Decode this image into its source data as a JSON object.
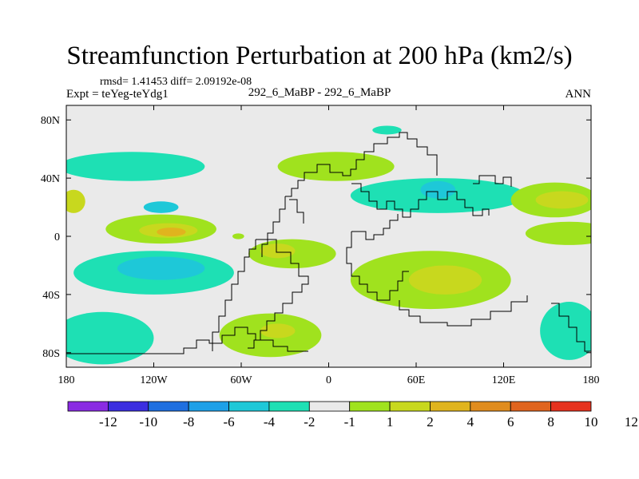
{
  "chart_data": {
    "type": "heatmap",
    "title": "Streamfunction Perturbation at 200 hPa (km2/s)",
    "stats_text": "rmsd= 1.41453 diff= 2.09192e-08",
    "experiment_text": "Expt = teYeg-teYdg1",
    "case_text": "292_6_MaBP - 292_6_MaBP",
    "season_text": "ANN",
    "x_range": [
      -180,
      180
    ],
    "y_range": [
      -90,
      90
    ],
    "x_ticks": [
      {
        "value": -180,
        "label": "180"
      },
      {
        "value": -120,
        "label": "120W"
      },
      {
        "value": -60,
        "label": "60W"
      },
      {
        "value": 0,
        "label": "0"
      },
      {
        "value": 60,
        "label": "60E"
      },
      {
        "value": 120,
        "label": "120E"
      },
      {
        "value": 180,
        "label": "180"
      }
    ],
    "y_ticks": [
      {
        "value": 80,
        "label": "80N"
      },
      {
        "value": 40,
        "label": "40N"
      },
      {
        "value": 0,
        "label": "0"
      },
      {
        "value": -40,
        "label": "40S"
      },
      {
        "value": -80,
        "label": "80S"
      }
    ],
    "colorbar": {
      "colors": [
        "#8a2be2",
        "#3b2ee0",
        "#1f6fe0",
        "#1ea0e8",
        "#1ec8d8",
        "#1ee0b4",
        "#eaeaea",
        "#a0e21e",
        "#c8d81e",
        "#e0b41e",
        "#e08c1e",
        "#e0641e",
        "#e6321e"
      ],
      "labels": [
        "-12",
        "-10",
        "-8",
        "-6",
        "-4",
        "-2",
        "-1",
        "1",
        "2",
        "4",
        "6",
        "8",
        "10",
        "12"
      ]
    },
    "regions": [
      {
        "name": "n-pacific-band-negative",
        "lon": -135,
        "lat": 48,
        "rx": 50,
        "ry": 10,
        "level": -2
      },
      {
        "name": "n-pacific-negative-core",
        "lon": -115,
        "lat": 20,
        "rx": 12,
        "ry": 4,
        "level": -4
      },
      {
        "name": "n-atlantic-band-positive",
        "lon": 5,
        "lat": 48,
        "rx": 40,
        "ry": 10,
        "level": 1
      },
      {
        "name": "north-pole-negative",
        "lon": 40,
        "lat": 73,
        "rx": 10,
        "ry": 3,
        "level": -2
      },
      {
        "name": "eurasia-band-negative",
        "lon": 75,
        "lat": 28,
        "rx": 60,
        "ry": 12,
        "level": -2
      },
      {
        "name": "asia-negative-core",
        "lon": 75,
        "lat": 32,
        "rx": 12,
        "ry": 6,
        "level": -4
      },
      {
        "name": "nw-pacific-positive",
        "lon": 155,
        "lat": 25,
        "rx": 30,
        "ry": 12,
        "level": 1
      },
      {
        "name": "nw-pacific-positive-core",
        "lon": 160,
        "lat": 25,
        "rx": 18,
        "ry": 6,
        "level": 2
      },
      {
        "name": "dateline-positive",
        "lon": -175,
        "lat": 24,
        "rx": 8,
        "ry": 8,
        "level": 2
      },
      {
        "name": "e-pacific-positive",
        "lon": -115,
        "lat": 5,
        "rx": 38,
        "ry": 10,
        "level": 1
      },
      {
        "name": "e-pacific-positive-core",
        "lon": -110,
        "lat": 4,
        "rx": 20,
        "ry": 5,
        "level": 2
      },
      {
        "name": "e-pacific-strong-core",
        "lon": -108,
        "lat": 3,
        "rx": 10,
        "ry": 3,
        "level": 4
      },
      {
        "name": "small-positive-blob",
        "lon": -62,
        "lat": 0,
        "rx": 4,
        "ry": 2,
        "level": 1
      },
      {
        "name": "tropical-atlantic-positive",
        "lon": -25,
        "lat": -12,
        "rx": 30,
        "ry": 10,
        "level": 1
      },
      {
        "name": "tropical-atlantic-core",
        "lon": -35,
        "lat": -10,
        "rx": 12,
        "ry": 5,
        "level": 2
      },
      {
        "name": "tropical-indian-positive",
        "lon": 70,
        "lat": -30,
        "rx": 55,
        "ry": 20,
        "level": 1
      },
      {
        "name": "indian-positive-core",
        "lon": 80,
        "lat": -30,
        "rx": 25,
        "ry": 10,
        "level": 2
      },
      {
        "name": "s-pacific-negative",
        "lon": -120,
        "lat": -25,
        "rx": 55,
        "ry": 15,
        "level": -2
      },
      {
        "name": "s-pacific-negative-core",
        "lon": -115,
        "lat": -22,
        "rx": 30,
        "ry": 8,
        "level": -4
      },
      {
        "name": "sw-pacific-positive",
        "lon": 165,
        "lat": 2,
        "rx": 30,
        "ry": 8,
        "level": 1
      },
      {
        "name": "s-atlantic-positive",
        "lon": -40,
        "lat": -68,
        "rx": 35,
        "ry": 15,
        "level": 1
      },
      {
        "name": "s-atlantic-positive-core",
        "lon": -35,
        "lat": -65,
        "rx": 12,
        "ry": 5,
        "level": 2
      },
      {
        "name": "sw-negative",
        "lon": -155,
        "lat": -70,
        "rx": 35,
        "ry": 18,
        "level": -2
      },
      {
        "name": "se-negative",
        "lon": 165,
        "lat": -65,
        "rx": 20,
        "ry": 20,
        "level": -2
      }
    ]
  }
}
